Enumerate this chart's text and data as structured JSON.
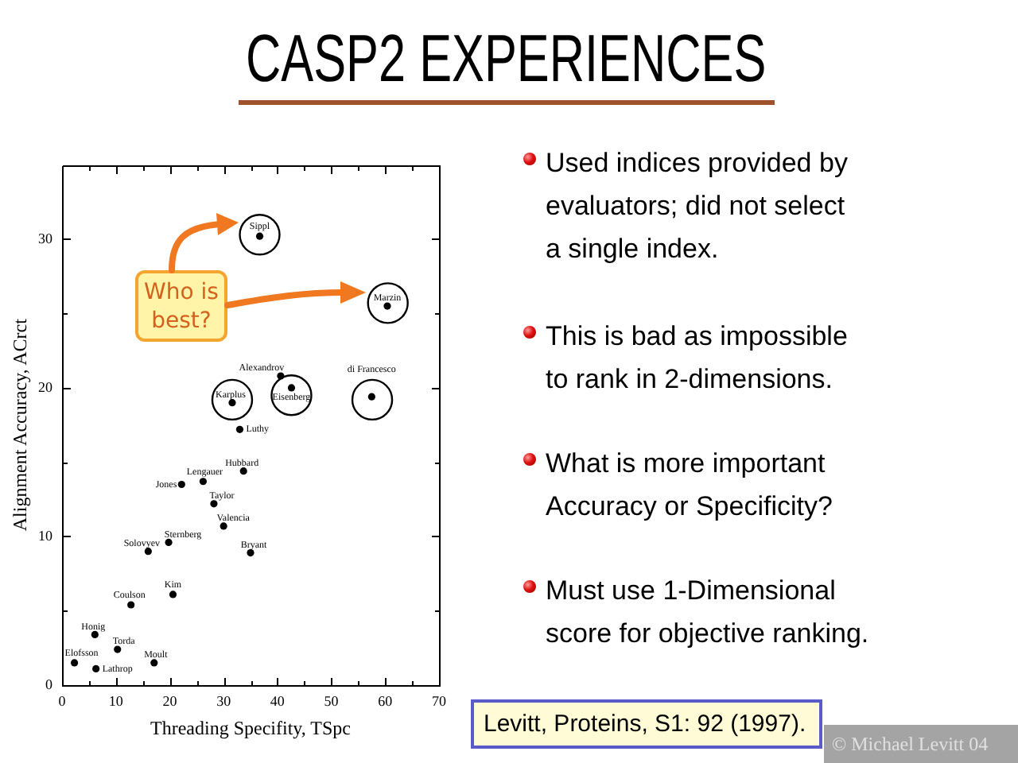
{
  "chart_data": {
    "type": "scatter",
    "title": "CASP2 EXPERIENCES",
    "xlabel": "Threading Specifity, TSpc",
    "ylabel": "Alignment Accuracy, ACrct",
    "xlim": [
      0,
      70
    ],
    "ylim": [
      0,
      35
    ],
    "xticks": [
      0,
      {
        "value": 5,
        "label": null
      },
      10,
      {
        "value": 15,
        "label": null
      },
      20,
      {
        "value": 25,
        "label": null
      },
      30,
      {
        "value": 35,
        "label": null
      },
      40,
      {
        "value": 45,
        "label": null
      },
      50,
      {
        "value": 55,
        "label": null
      },
      60,
      {
        "value": 65,
        "label": null
      },
      70
    ],
    "yticks": [
      0,
      {
        "value": 5,
        "label": null
      },
      10,
      {
        "value": 15,
        "label": null
      },
      20,
      {
        "value": 25,
        "label": null
      },
      30
    ],
    "marker": "circle",
    "series": [
      {
        "color": "#000000",
        "x": [
          36.7,
          60.4,
          40.6,
          42.6,
          31.6,
          57.5,
          33.0,
          33.7,
          26.2,
          22.2,
          28.2,
          30.0,
          19.8,
          16.0,
          35.0,
          20.6,
          12.8,
          6.1,
          10.3,
          2.3,
          6.3,
          17.1
        ],
        "values": [
          30.2,
          25.5,
          20.8,
          20.0,
          19.0,
          19.4,
          17.2,
          14.4,
          13.7,
          13.5,
          12.2,
          10.7,
          9.6,
          9.0,
          8.9,
          6.1,
          5.4,
          3.4,
          2.4,
          1.5,
          1.1,
          1.5
        ]
      },
      {
        "type": "bubble",
        "color": "#000000",
        "x": [
          36.7,
          60.5,
          31.6,
          42.6,
          57.6
        ],
        "values": [
          30.3,
          25.7,
          19.2,
          19.5,
          19.2
        ],
        "sizes": [
          1,
          1,
          1,
          1,
          1
        ]
      }
    ],
    "annotations": [
      {
        "text": "Sippl",
        "x": 36.7,
        "y": 30.2
      },
      {
        "text": "Marzin",
        "x": 60.4,
        "y": 25.5
      },
      {
        "text": "Alexandrov",
        "x": 40.6,
        "y": 20.8
      },
      {
        "text": "Eisenberg",
        "x": 42.6,
        "y": 20.0
      },
      {
        "text": "Karplus",
        "x": 31.6,
        "y": 19.0
      },
      {
        "text": "di Francesco",
        "x": 57.5,
        "y": 19.4
      },
      {
        "text": "Luthy",
        "x": 33.0,
        "y": 17.2
      },
      {
        "text": "Hubbard",
        "x": 33.7,
        "y": 14.4
      },
      {
        "text": "Lengauer",
        "x": 26.2,
        "y": 13.7
      },
      {
        "text": "Jones",
        "x": 22.2,
        "y": 13.5
      },
      {
        "text": "Taylor",
        "x": 28.2,
        "y": 12.2
      },
      {
        "text": "Valencia",
        "x": 30.0,
        "y": 10.7
      },
      {
        "text": "Sternberg",
        "x": 19.8,
        "y": 9.6
      },
      {
        "text": "Solovyev",
        "x": 16.0,
        "y": 9.0
      },
      {
        "text": "Bryant",
        "x": 35.0,
        "y": 8.9
      },
      {
        "text": "Kim",
        "x": 20.6,
        "y": 6.1
      },
      {
        "text": "Coulson",
        "x": 12.8,
        "y": 5.4
      },
      {
        "text": "Honig",
        "x": 6.1,
        "y": 3.4
      },
      {
        "text": "Torda",
        "x": 10.3,
        "y": 2.4
      },
      {
        "text": "Elofsson",
        "x": 2.3,
        "y": 1.5
      },
      {
        "text": "Lathrop",
        "x": 6.3,
        "y": 1.1
      },
      {
        "text": "Moult",
        "x": 17.1,
        "y": 1.5
      },
      "Who is\nbest?",
      "Used indices provided by\nevaluators; did not select\na single index.",
      "This is bad as impossible\nto rank in 2-dimensions.",
      "What is more important\nAccuracy or Specificity?",
      "Must use 1-Dimensional\nscore for objective ranking.",
      "Levitt, Proteins, S1: 92 (1997).",
      "© Michael Levitt 04"
    ]
  }
}
